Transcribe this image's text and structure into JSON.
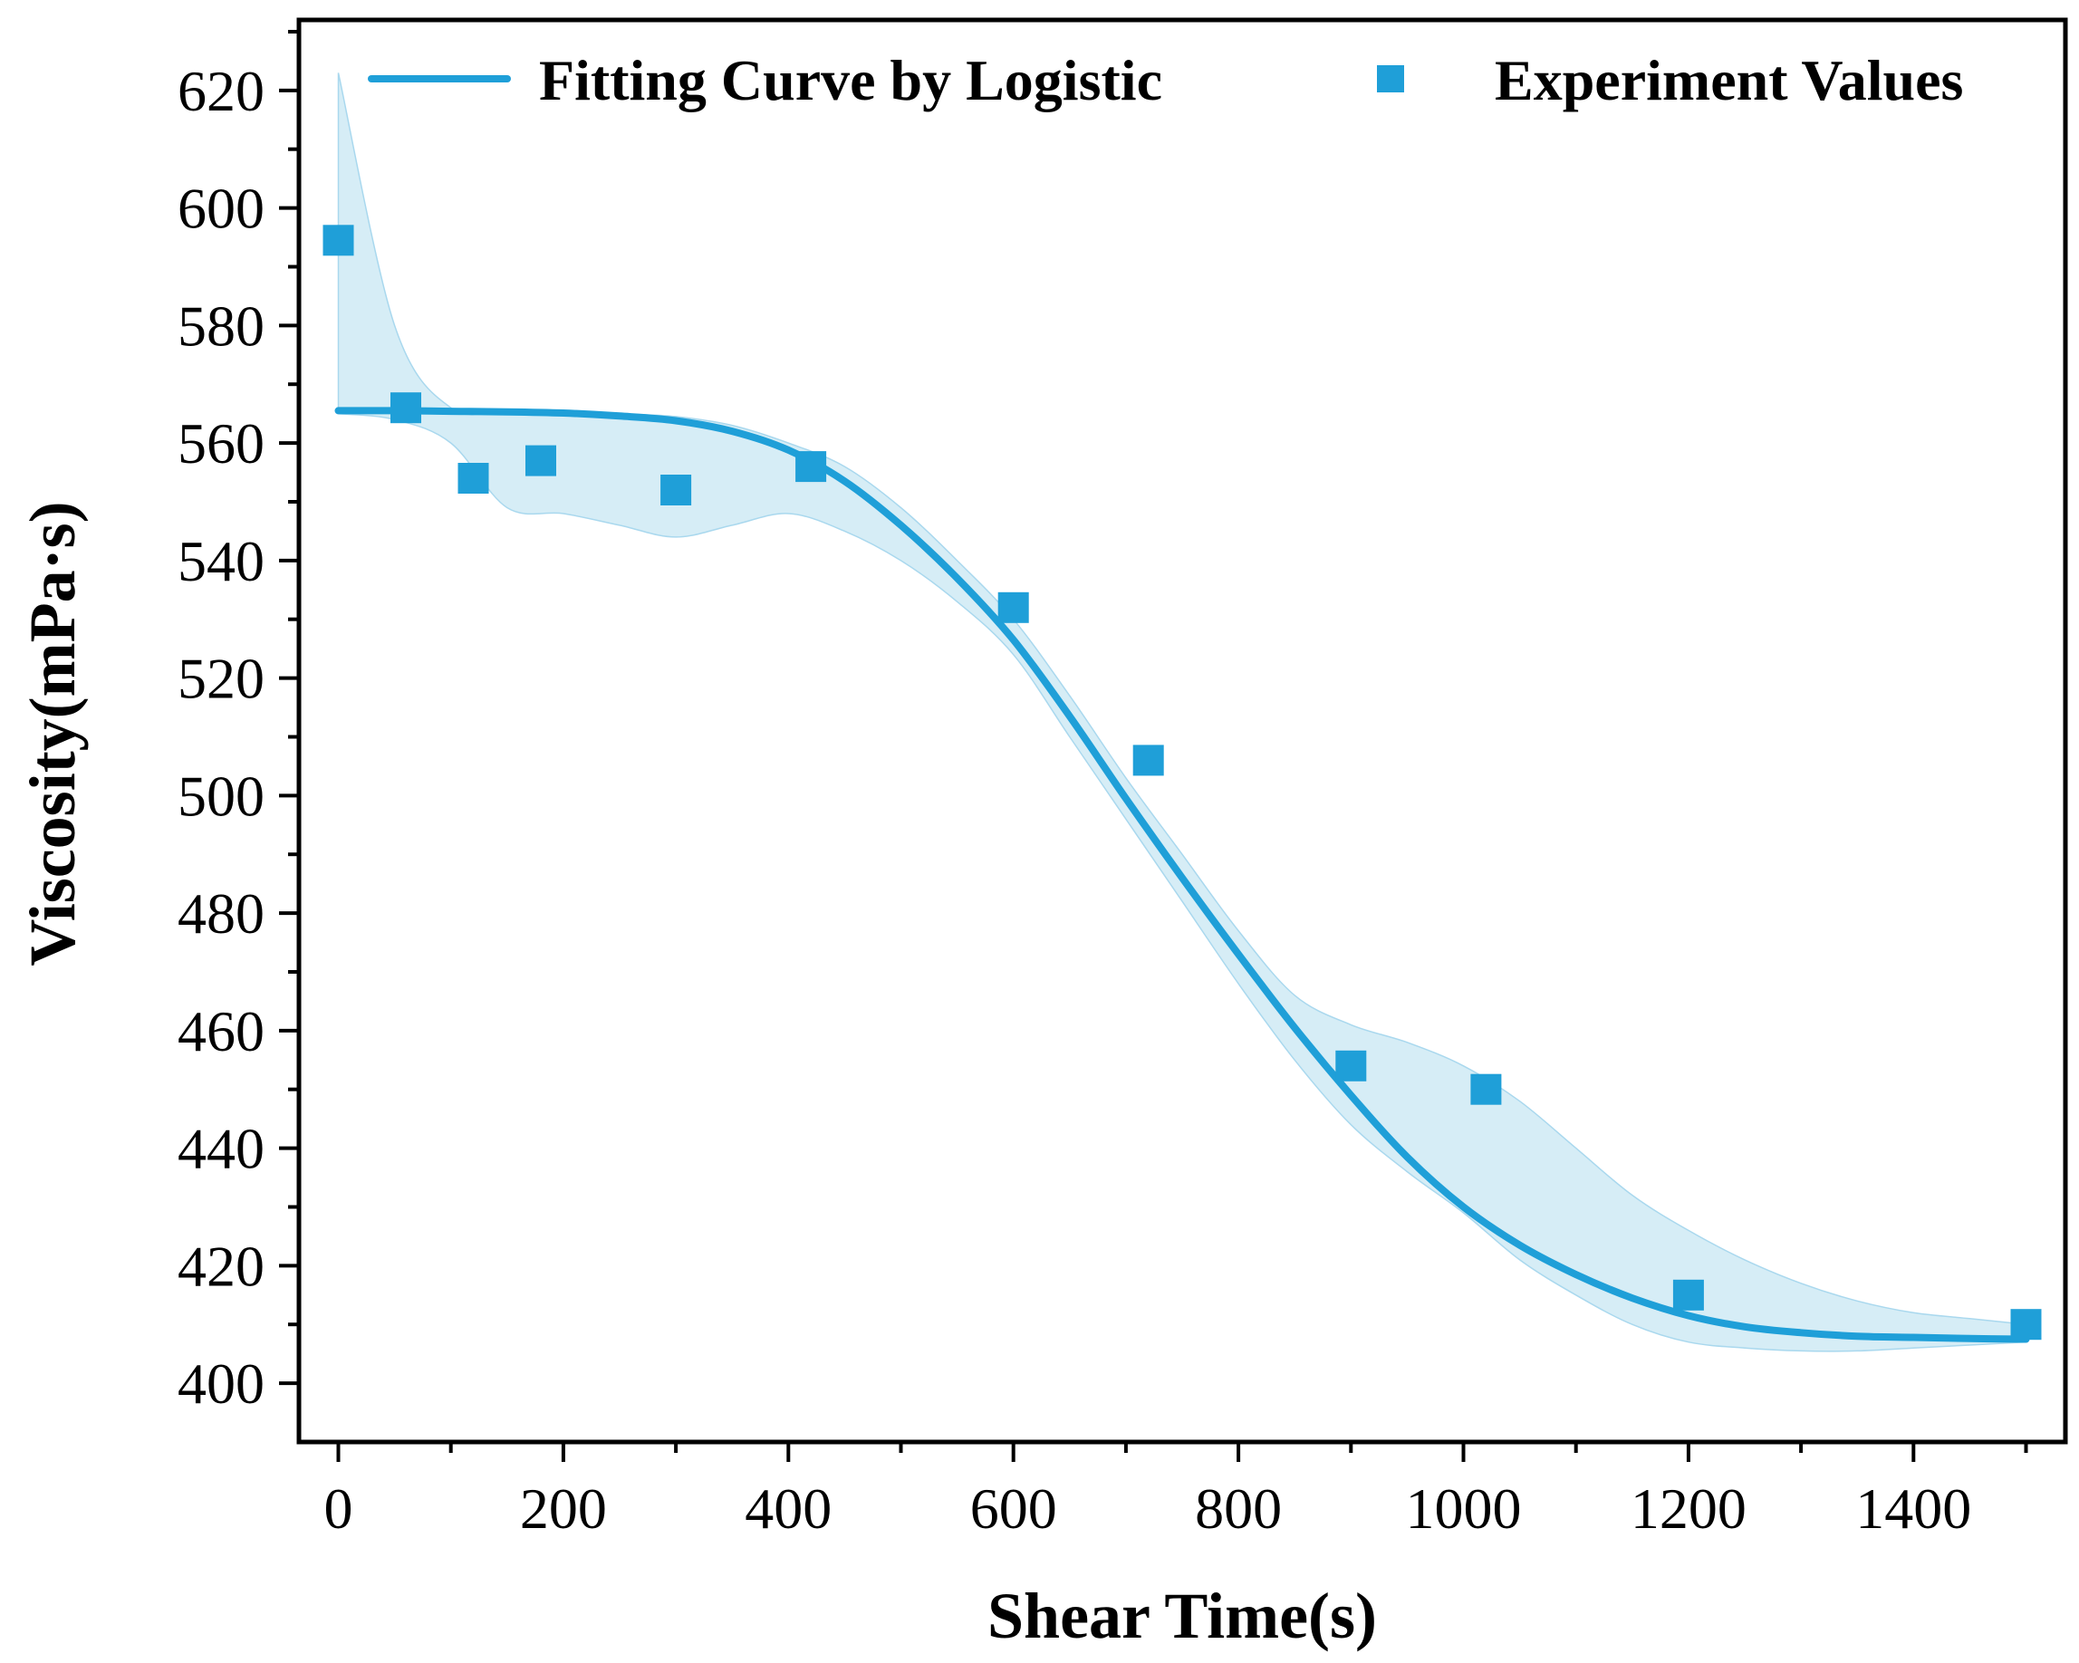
{
  "chart_data": {
    "type": "line",
    "title": "",
    "xlabel": "Shear Time(s)",
    "ylabel": "Viscosity(mPa·s)",
    "xlim": [
      -35,
      1535
    ],
    "ylim": [
      390,
      632
    ],
    "x_ticks": [
      0,
      200,
      400,
      600,
      800,
      1000,
      1200,
      1400
    ],
    "x_tick_labels": [
      "0",
      "200",
      "400",
      "600",
      "800",
      "1000",
      "1200",
      "1400"
    ],
    "y_ticks": [
      400,
      420,
      440,
      460,
      480,
      500,
      520,
      540,
      560,
      580,
      600,
      620
    ],
    "y_tick_labels": [
      "400",
      "420",
      "440",
      "460",
      "480",
      "500",
      "520",
      "540",
      "560",
      "580",
      "600",
      "620"
    ],
    "grid": false,
    "legend_position": "top",
    "legend": {
      "line_label": "Fitting Curve by Logistic",
      "marker_label": "Experiment Values"
    },
    "colors": {
      "line": "#1f9fd8",
      "marker": "#1f9fd8",
      "band": "#cfeaf5",
      "axis": "#000000"
    },
    "series": [
      {
        "name": "Fitting Curve by Logistic",
        "kind": "line",
        "x": [
          0,
          50,
          100,
          150,
          200,
          250,
          300,
          350,
          400,
          450,
          500,
          550,
          600,
          650,
          700,
          750,
          800,
          850,
          900,
          950,
          1000,
          1050,
          1100,
          1150,
          1200,
          1250,
          1300,
          1350,
          1400,
          1450,
          1500
        ],
        "y": [
          565.5,
          565.5,
          565.4,
          565.3,
          565.1,
          564.6,
          563.8,
          562.0,
          558.8,
          553.5,
          546.0,
          537.0,
          526.5,
          513.5,
          499.5,
          486.0,
          473.0,
          460.5,
          449.0,
          438.5,
          430.0,
          423.5,
          418.5,
          414.5,
          411.5,
          409.6,
          408.6,
          408.0,
          407.8,
          407.6,
          407.5
        ]
      },
      {
        "name": "Experiment Values",
        "kind": "scatter",
        "x": [
          0,
          60,
          120,
          180,
          300,
          420,
          600,
          720,
          900,
          1020,
          1200,
          1500
        ],
        "y": [
          594.5,
          566,
          554,
          557,
          552,
          556,
          532,
          506,
          454,
          450,
          415,
          410
        ]
      },
      {
        "name": "",
        "kind": "band",
        "x": [
          0,
          50,
          100,
          150,
          200,
          250,
          300,
          350,
          400,
          450,
          500,
          550,
          600,
          650,
          700,
          750,
          800,
          850,
          900,
          950,
          1000,
          1050,
          1100,
          1150,
          1200,
          1250,
          1300,
          1350,
          1400,
          1450,
          1500
        ],
        "upper": [
          623,
          580,
          566,
          565.5,
          565.5,
          565,
          564.5,
          563,
          560,
          556,
          549,
          540,
          530,
          517,
          503,
          490,
          477,
          466,
          461,
          458,
          454,
          448,
          440,
          432,
          426,
          421,
          417,
          414,
          412,
          411,
          410
        ],
        "lower": [
          565,
          564,
          560,
          549,
          548,
          546,
          544,
          546,
          548,
          545,
          540,
          533,
          524,
          510,
          496,
          482,
          468,
          455,
          444,
          436,
          429,
          421,
          415,
          410,
          407,
          406,
          405.5,
          405.5,
          406,
          406.5,
          407
        ]
      }
    ]
  }
}
